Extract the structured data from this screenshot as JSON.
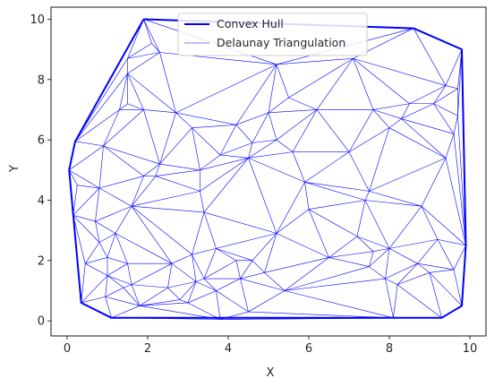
{
  "chart_data": {
    "type": "line",
    "xlabel": "X",
    "ylabel": "Y",
    "xlim": [
      -0.4,
      10.4
    ],
    "ylim": [
      -0.5,
      10.4
    ],
    "xticks": [
      "0",
      "2",
      "4",
      "6",
      "8",
      "10"
    ],
    "yticks": [
      "0",
      "2",
      "4",
      "6",
      "8",
      "10"
    ],
    "grid": false,
    "legend_position": "top-center",
    "series": [
      {
        "name": "Convex Hull",
        "color": "#0000ff",
        "points": [
          [
            1.9,
            10.0
          ],
          [
            8.6,
            9.7
          ],
          [
            9.8,
            9.0
          ],
          [
            9.9,
            2.5
          ],
          [
            9.8,
            0.5
          ],
          [
            9.3,
            0.1
          ],
          [
            1.1,
            0.1
          ],
          [
            0.35,
            0.6
          ],
          [
            0.05,
            5.0
          ],
          [
            0.2,
            5.95
          ]
        ]
      },
      {
        "name": "Delaunay Triangulation",
        "color": "#0000ff",
        "points": [
          [
            1.9,
            10.0
          ],
          [
            8.6,
            9.7
          ],
          [
            9.8,
            9.0
          ],
          [
            9.9,
            2.5
          ],
          [
            9.8,
            0.5
          ],
          [
            9.3,
            0.1
          ],
          [
            1.1,
            0.1
          ],
          [
            0.35,
            0.6
          ],
          [
            0.05,
            5.0
          ],
          [
            0.2,
            5.95
          ],
          [
            2.1,
            9.2
          ],
          [
            1.5,
            8.7
          ],
          [
            2.3,
            8.9
          ],
          [
            5.2,
            8.5
          ],
          [
            7.1,
            8.7
          ],
          [
            9.4,
            7.8
          ],
          [
            9.7,
            7.7
          ],
          [
            1.5,
            8.2
          ],
          [
            1.3,
            7.0
          ],
          [
            1.5,
            7.2
          ],
          [
            1.9,
            7.0
          ],
          [
            2.7,
            6.9
          ],
          [
            4.2,
            6.5
          ],
          [
            5.0,
            6.9
          ],
          [
            5.5,
            7.4
          ],
          [
            6.2,
            7.0
          ],
          [
            7.6,
            7.0
          ],
          [
            8.5,
            7.2
          ],
          [
            9.1,
            7.2
          ],
          [
            9.7,
            6.8
          ],
          [
            0.9,
            5.8
          ],
          [
            2.3,
            5.2
          ],
          [
            3.1,
            6.4
          ],
          [
            3.3,
            5.0
          ],
          [
            4.6,
            5.9
          ],
          [
            5.2,
            6.0
          ],
          [
            5.6,
            5.6
          ],
          [
            7.0,
            5.6
          ],
          [
            8.0,
            6.4
          ],
          [
            8.3,
            6.7
          ],
          [
            9.6,
            6.2
          ],
          [
            1.9,
            4.8
          ],
          [
            2.2,
            4.8
          ],
          [
            0.25,
            4.5
          ],
          [
            0.8,
            4.4
          ],
          [
            1.6,
            3.8
          ],
          [
            3.3,
            4.3
          ],
          [
            3.8,
            5.5
          ],
          [
            4.5,
            5.4
          ],
          [
            5.9,
            4.6
          ],
          [
            7.5,
            4.3
          ],
          [
            9.4,
            5.4
          ],
          [
            0.15,
            3.5
          ],
          [
            0.7,
            3.3
          ],
          [
            0.8,
            2.6
          ],
          [
            1.2,
            2.9
          ],
          [
            3.4,
            3.6
          ],
          [
            5.2,
            2.9
          ],
          [
            6.0,
            3.7
          ],
          [
            7.2,
            2.8
          ],
          [
            7.4,
            4.0
          ],
          [
            8.8,
            3.8
          ],
          [
            9.2,
            2.7
          ],
          [
            0.45,
            1.9
          ],
          [
            1.0,
            2.1
          ],
          [
            1.5,
            1.9
          ],
          [
            2.6,
            1.9
          ],
          [
            3.1,
            2.2
          ],
          [
            3.7,
            2.4
          ],
          [
            4.2,
            2.0
          ],
          [
            4.6,
            2.0
          ],
          [
            4.3,
            1.4
          ],
          [
            4.9,
            1.6
          ],
          [
            6.5,
            2.1
          ],
          [
            7.5,
            1.8
          ],
          [
            7.6,
            2.3
          ],
          [
            8.0,
            2.4
          ],
          [
            8.7,
            1.9
          ],
          [
            9.6,
            1.7
          ],
          [
            1.0,
            1.5
          ],
          [
            1.4,
            1.1
          ],
          [
            1.6,
            1.2
          ],
          [
            2.5,
            1.1
          ],
          [
            3.2,
            1.3
          ],
          [
            3.4,
            1.4
          ],
          [
            3.0,
            0.6
          ],
          [
            3.7,
            1.0
          ],
          [
            4.5,
            0.3
          ],
          [
            5.4,
            1.0
          ],
          [
            7.9,
            1.4
          ],
          [
            8.2,
            1.2
          ],
          [
            9.0,
            1.6
          ],
          [
            1.8,
            0.5
          ],
          [
            2.8,
            0.7
          ],
          [
            3.8,
            0.05
          ],
          [
            8.1,
            0.1
          ],
          [
            0.95,
            0.8
          ]
        ]
      }
    ]
  },
  "legend": {
    "hull_label": "Convex Hull",
    "tri_label": "Delaunay Triangulation"
  }
}
